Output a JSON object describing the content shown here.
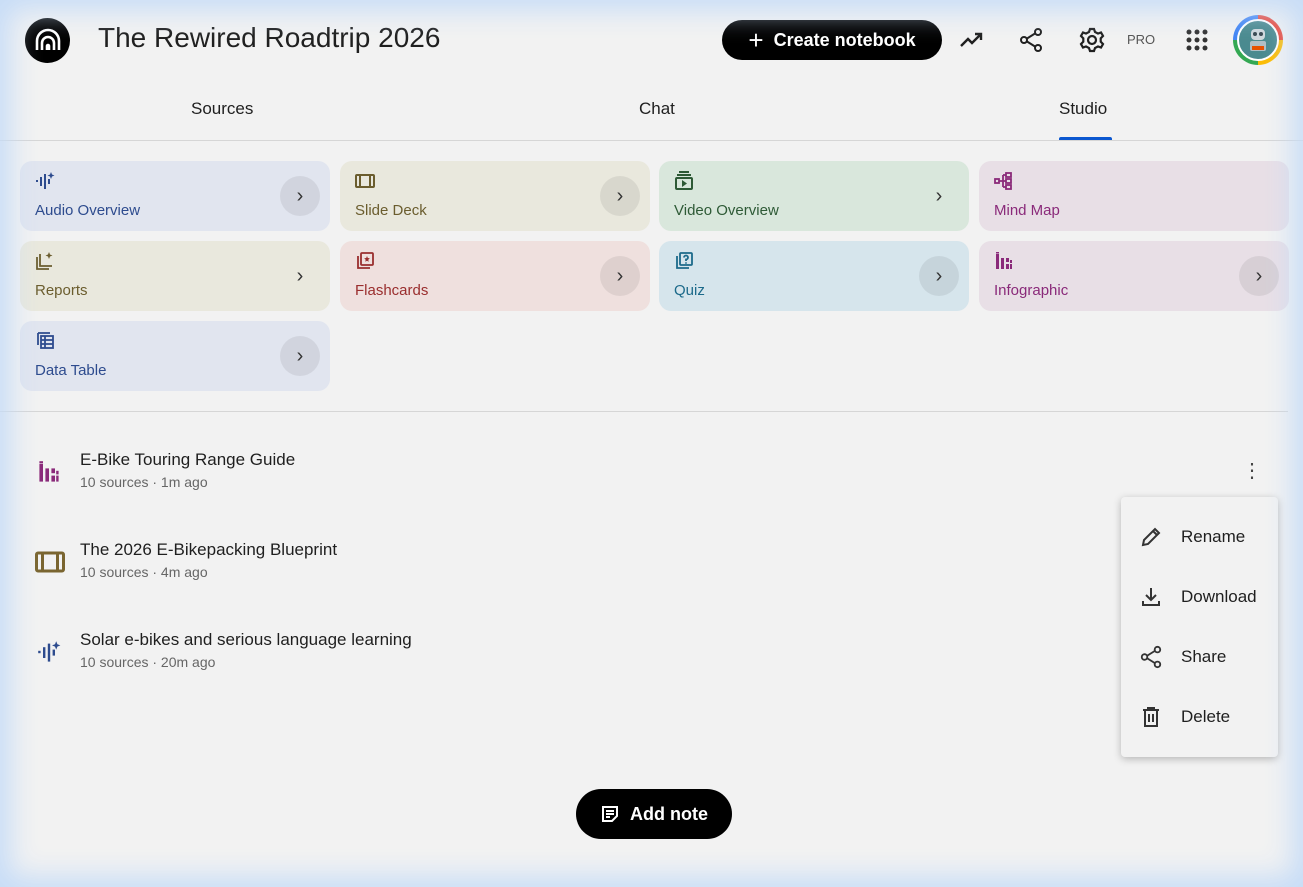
{
  "header": {
    "title": "The Rewired Roadtrip 2026",
    "create_label": "Create notebook",
    "pro_badge": "PRO"
  },
  "tabs": [
    {
      "label": "Sources"
    },
    {
      "label": "Chat"
    },
    {
      "label": "Studio",
      "active": true
    }
  ],
  "studio_cards": [
    {
      "label": "Audio Overview",
      "icon": "audio-waveform-icon",
      "bg": "#e1e5ef",
      "color": "#2d4b8e"
    },
    {
      "label": "Slide Deck",
      "icon": "slide-deck-icon",
      "bg": "#e9e8dd",
      "color": "#6b5d2e"
    },
    {
      "label": "Video Overview",
      "icon": "video-icon",
      "bg": "#d9e7dc",
      "color": "#2e5a36"
    },
    {
      "label": "Mind Map",
      "icon": "mind-map-icon",
      "bg": "#e8dfe6",
      "color": "#8a2a7a"
    },
    {
      "label": "Reports",
      "icon": "reports-icon",
      "bg": "#e9e8dd",
      "color": "#6b5d2e"
    },
    {
      "label": "Flashcards",
      "icon": "flashcards-icon",
      "bg": "#efe0de",
      "color": "#9a2e2e"
    },
    {
      "label": "Quiz",
      "icon": "quiz-icon",
      "bg": "#d6e5ec",
      "color": "#1c6a8a"
    },
    {
      "label": "Infographic",
      "icon": "infographic-icon",
      "bg": "#e8dfe6",
      "color": "#8a2a7a"
    },
    {
      "label": "Data Table",
      "icon": "data-table-icon",
      "bg": "#e1e5ef",
      "color": "#2d4b8e"
    }
  ],
  "notes": [
    {
      "title": "E-Bike Touring Range Guide",
      "meta": "10 sources · 1m ago",
      "icon": "infographic-icon"
    },
    {
      "title": "The 2026 E-Bikepacking Blueprint",
      "meta": "10 sources · 4m ago",
      "icon": "slide-deck-icon"
    },
    {
      "title": "Solar e-bikes and serious language learning",
      "meta": "10 sources · 20m ago",
      "icon": "audio-waveform-icon"
    }
  ],
  "context_menu": {
    "items": [
      {
        "label": "Rename"
      },
      {
        "label": "Download"
      },
      {
        "label": "Share"
      },
      {
        "label": "Delete"
      }
    ]
  },
  "add_note_label": "Add note"
}
